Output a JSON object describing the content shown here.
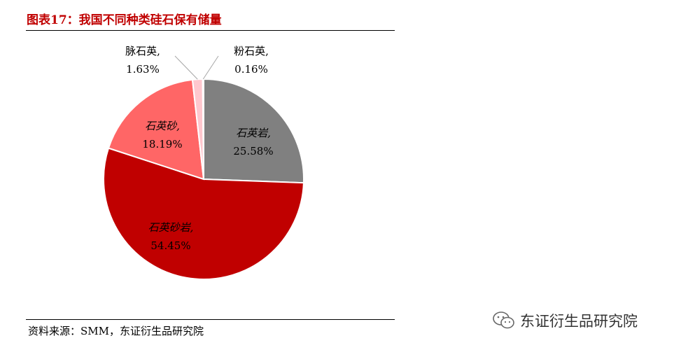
{
  "header": {
    "title": "图表17：我国不同种类硅石保有储量"
  },
  "footer": {
    "source": "资料来源：SMM，东证衍生品研究院"
  },
  "watermark": {
    "text": "东证衍生品研究院",
    "icon": "wechat-icon"
  },
  "colors": {
    "accent": "#c00000",
    "slice_colors": [
      "#808080",
      "#c00000",
      "#ff6666",
      "#ffc7ce",
      "#ffd9d9"
    ]
  },
  "chart_data": {
    "type": "pie",
    "title": "",
    "slices": [
      {
        "name": "石英岩",
        "value": 25.58,
        "label": "石英岩,",
        "value_label": "25.58%"
      },
      {
        "name": "石英砂岩",
        "value": 54.45,
        "label": "石英砂岩,",
        "value_label": "54.45%"
      },
      {
        "name": "石英砂",
        "value": 18.19,
        "label": "石英砂,",
        "value_label": "18.19%"
      },
      {
        "name": "脉石英",
        "value": 1.63,
        "label": "脉石英,",
        "value_label": "1.63%"
      },
      {
        "name": "粉石英",
        "value": 0.16,
        "label": "粉石英,",
        "value_label": "0.16%"
      }
    ]
  }
}
